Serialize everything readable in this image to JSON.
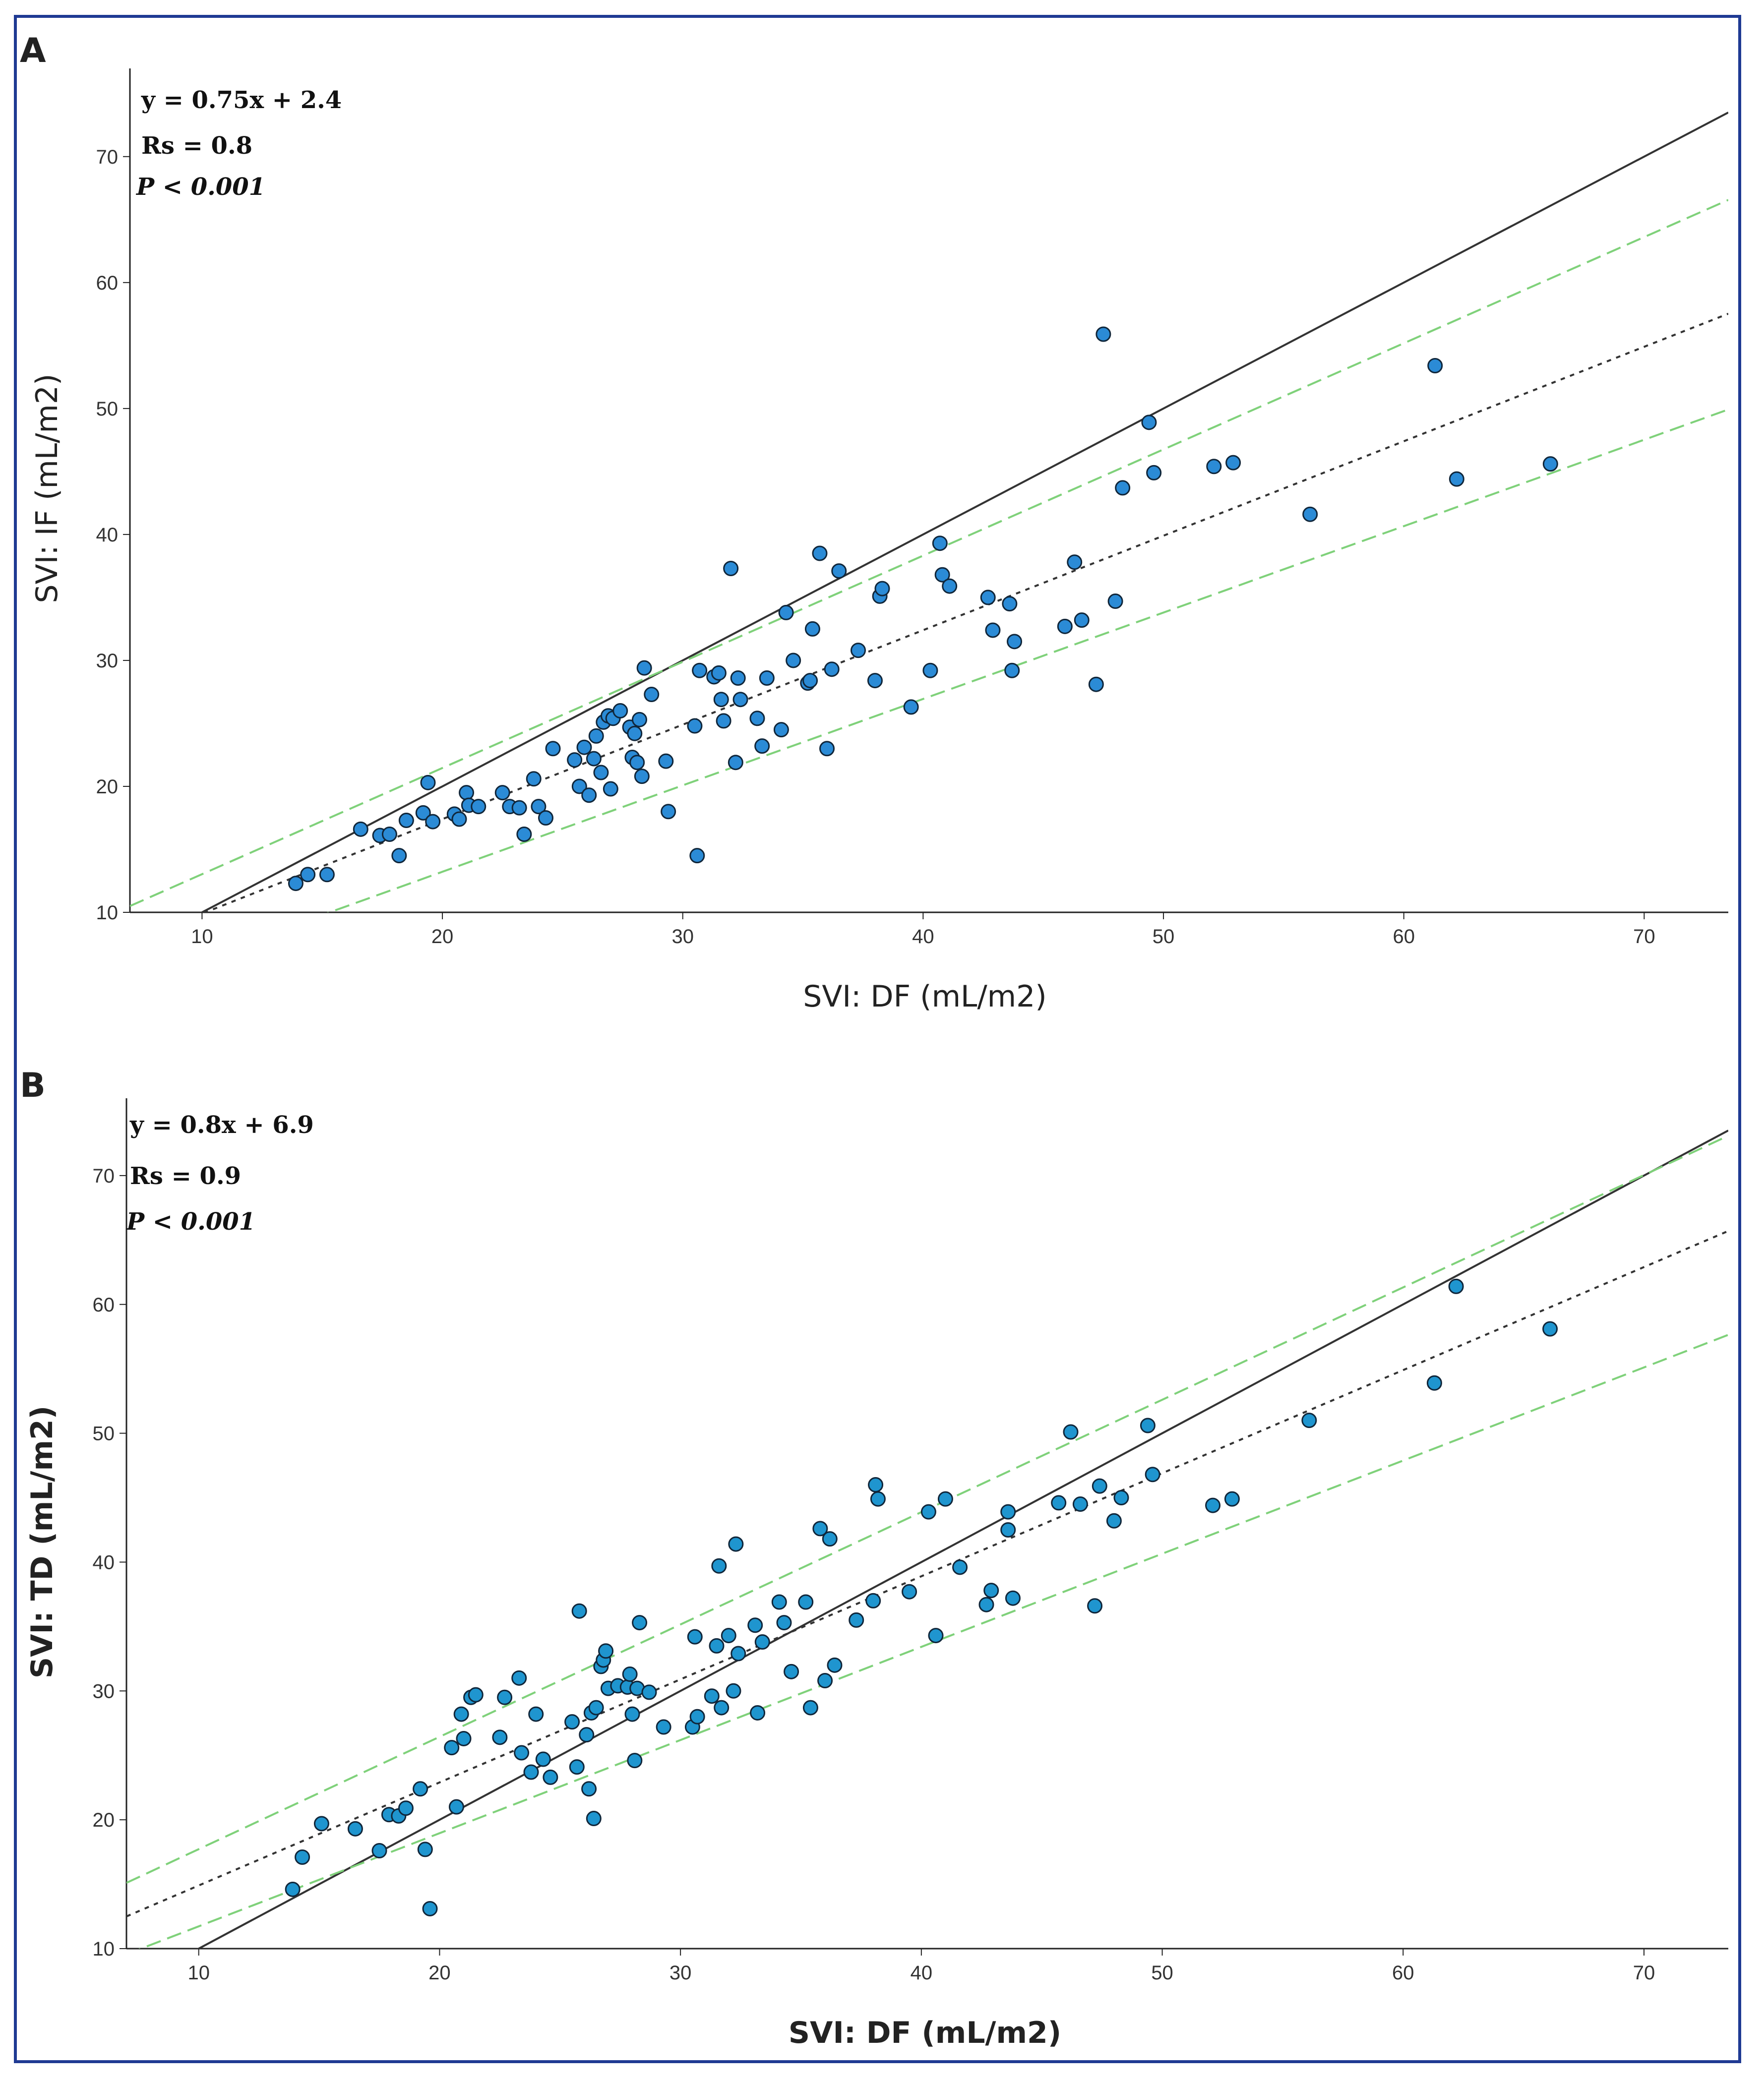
{
  "chart_data": [
    {
      "panel": "A",
      "type": "scatter",
      "xlabel": "SVI: DF (mL/m2)",
      "ylabel": "SVI: IF (mL/m2)",
      "xlim": [
        7,
        73.5
      ],
      "ylim": [
        10,
        77
      ],
      "xticks": [
        10,
        20,
        30,
        40,
        50,
        60,
        70
      ],
      "yticks": [
        10,
        20,
        30,
        40,
        50,
        60,
        70
      ],
      "annotations": [
        "y = 0.75x + 2.4",
        "Rs = 0.8",
        "P < 0.001"
      ],
      "lines": [
        {
          "name": "identity",
          "style": "solid",
          "color": "#333333",
          "slope": 1,
          "intercept": 0
        },
        {
          "name": "regression",
          "style": "dotted",
          "color": "#333333",
          "slope": 0.75,
          "intercept": 2.4
        },
        {
          "name": "upper-bound",
          "style": "dashed",
          "color": "#7fd17a",
          "slope": 0.843,
          "intercept": 4.6
        },
        {
          "name": "lower-bound",
          "style": "dashed",
          "color": "#7fd17a",
          "slope": 0.686,
          "intercept": -0.5
        }
      ],
      "point_color": "#2b8bd6",
      "points": [
        [
          13.9,
          12.3
        ],
        [
          14.4,
          13.0
        ],
        [
          15.2,
          13.0
        ],
        [
          16.6,
          16.6
        ],
        [
          17.4,
          16.1
        ],
        [
          17.8,
          16.2
        ],
        [
          18.2,
          14.5
        ],
        [
          18.5,
          17.3
        ],
        [
          19.2,
          17.9
        ],
        [
          19.4,
          20.3
        ],
        [
          19.6,
          17.2
        ],
        [
          20.5,
          17.8
        ],
        [
          20.7,
          17.4
        ],
        [
          21.0,
          19.5
        ],
        [
          21.1,
          18.5
        ],
        [
          21.5,
          18.4
        ],
        [
          22.5,
          19.5
        ],
        [
          22.8,
          18.4
        ],
        [
          23.2,
          18.3
        ],
        [
          23.4,
          16.2
        ],
        [
          23.8,
          20.6
        ],
        [
          24.0,
          18.4
        ],
        [
          24.3,
          17.5
        ],
        [
          24.6,
          23.0
        ],
        [
          25.5,
          22.1
        ],
        [
          25.7,
          20.0
        ],
        [
          25.9,
          23.1
        ],
        [
          26.1,
          19.3
        ],
        [
          26.3,
          22.2
        ],
        [
          26.4,
          24.0
        ],
        [
          26.6,
          21.1
        ],
        [
          26.7,
          25.1
        ],
        [
          26.9,
          25.6
        ],
        [
          27.0,
          19.8
        ],
        [
          27.1,
          25.4
        ],
        [
          27.4,
          26.0
        ],
        [
          27.8,
          24.7
        ],
        [
          27.9,
          22.3
        ],
        [
          28.0,
          24.2
        ],
        [
          28.1,
          21.9
        ],
        [
          28.2,
          25.3
        ],
        [
          28.3,
          20.8
        ],
        [
          28.4,
          29.4
        ],
        [
          28.7,
          27.3
        ],
        [
          29.3,
          22.0
        ],
        [
          29.4,
          18.0
        ],
        [
          30.5,
          24.8
        ],
        [
          30.6,
          14.5
        ],
        [
          30.7,
          29.2
        ],
        [
          31.3,
          28.7
        ],
        [
          31.5,
          29.0
        ],
        [
          31.6,
          26.9
        ],
        [
          31.7,
          25.2
        ],
        [
          32.0,
          37.3
        ],
        [
          32.2,
          21.9
        ],
        [
          32.3,
          28.6
        ],
        [
          32.4,
          26.9
        ],
        [
          33.1,
          25.4
        ],
        [
          33.3,
          23.2
        ],
        [
          33.5,
          28.6
        ],
        [
          34.1,
          24.5
        ],
        [
          34.3,
          33.8
        ],
        [
          34.6,
          30.0
        ],
        [
          35.2,
          28.2
        ],
        [
          35.3,
          28.4
        ],
        [
          35.4,
          32.5
        ],
        [
          35.7,
          38.5
        ],
        [
          36.0,
          23.0
        ],
        [
          36.2,
          29.3
        ],
        [
          36.5,
          37.1
        ],
        [
          37.3,
          30.8
        ],
        [
          38.0,
          28.4
        ],
        [
          38.2,
          35.1
        ],
        [
          38.3,
          35.7
        ],
        [
          39.5,
          26.3
        ],
        [
          40.3,
          29.2
        ],
        [
          40.7,
          39.3
        ],
        [
          40.8,
          36.8
        ],
        [
          41.1,
          35.9
        ],
        [
          42.7,
          35.0
        ],
        [
          42.9,
          32.4
        ],
        [
          43.6,
          34.5
        ],
        [
          43.7,
          29.2
        ],
        [
          43.8,
          31.5
        ],
        [
          45.9,
          32.7
        ],
        [
          46.3,
          37.8
        ],
        [
          46.6,
          33.2
        ],
        [
          47.2,
          28.1
        ],
        [
          47.5,
          55.9
        ],
        [
          48.0,
          34.7
        ],
        [
          48.3,
          43.7
        ],
        [
          49.4,
          48.9
        ],
        [
          49.6,
          44.9
        ],
        [
          52.1,
          45.4
        ],
        [
          52.9,
          45.7
        ],
        [
          56.1,
          41.6
        ],
        [
          61.3,
          53.4
        ],
        [
          62.2,
          44.4
        ],
        [
          66.1,
          45.6
        ]
      ]
    },
    {
      "panel": "B",
      "type": "scatter",
      "xlabel": "SVI: DF (mL/m2)",
      "ylabel": "SVI: TD (mL/m2)",
      "xlim": [
        7,
        73.5
      ],
      "ylim": [
        10,
        76
      ],
      "xticks": [
        10,
        20,
        30,
        40,
        50,
        60,
        70
      ],
      "yticks": [
        10,
        20,
        30,
        40,
        50,
        60,
        70
      ],
      "annotations": [
        "y = 0.8x + 6.9",
        "Rs = 0.9",
        "P < 0.001"
      ],
      "lines": [
        {
          "name": "identity",
          "style": "solid",
          "color": "#333333",
          "slope": 1,
          "intercept": 0
        },
        {
          "name": "regression",
          "style": "dotted",
          "color": "#333333",
          "slope": 0.8,
          "intercept": 6.9
        },
        {
          "name": "upper-bound",
          "style": "dashed",
          "color": "#7fd17a",
          "slope": 0.872,
          "intercept": 9.0
        },
        {
          "name": "lower-bound",
          "style": "dashed",
          "color": "#7fd17a",
          "slope": 0.723,
          "intercept": 4.5
        }
      ],
      "point_color": "#1f95cf",
      "points": [
        [
          13.9,
          14.6
        ],
        [
          14.3,
          17.1
        ],
        [
          15.1,
          19.7
        ],
        [
          16.5,
          19.3
        ],
        [
          17.5,
          17.6
        ],
        [
          17.9,
          20.4
        ],
        [
          18.3,
          20.3
        ],
        [
          18.6,
          20.9
        ],
        [
          19.2,
          22.4
        ],
        [
          19.4,
          17.7
        ],
        [
          19.6,
          13.1
        ],
        [
          20.5,
          25.6
        ],
        [
          20.7,
          21.0
        ],
        [
          20.9,
          28.2
        ],
        [
          21.0,
          26.3
        ],
        [
          21.3,
          29.5
        ],
        [
          21.5,
          29.7
        ],
        [
          22.5,
          26.4
        ],
        [
          22.7,
          29.5
        ],
        [
          23.3,
          31.0
        ],
        [
          23.4,
          25.2
        ],
        [
          23.8,
          23.7
        ],
        [
          24.0,
          28.2
        ],
        [
          24.3,
          24.7
        ],
        [
          24.6,
          23.3
        ],
        [
          25.5,
          27.6
        ],
        [
          25.7,
          24.1
        ],
        [
          25.8,
          36.2
        ],
        [
          26.1,
          26.6
        ],
        [
          26.2,
          22.4
        ],
        [
          26.3,
          28.3
        ],
        [
          26.4,
          20.1
        ],
        [
          26.5,
          28.7
        ],
        [
          26.7,
          31.9
        ],
        [
          26.8,
          32.4
        ],
        [
          26.9,
          33.1
        ],
        [
          27.0,
          30.2
        ],
        [
          27.4,
          30.4
        ],
        [
          27.8,
          30.3
        ],
        [
          27.9,
          31.3
        ],
        [
          28.0,
          28.2
        ],
        [
          28.1,
          24.6
        ],
        [
          28.2,
          30.2
        ],
        [
          28.3,
          35.3
        ],
        [
          28.7,
          29.9
        ],
        [
          29.3,
          27.2
        ],
        [
          30.5,
          27.2
        ],
        [
          30.6,
          34.2
        ],
        [
          30.7,
          28.0
        ],
        [
          31.3,
          29.6
        ],
        [
          31.5,
          33.5
        ],
        [
          31.6,
          39.7
        ],
        [
          31.7,
          28.7
        ],
        [
          32.0,
          34.3
        ],
        [
          32.2,
          30.0
        ],
        [
          32.3,
          41.4
        ],
        [
          32.4,
          32.9
        ],
        [
          33.1,
          35.1
        ],
        [
          33.2,
          28.3
        ],
        [
          33.4,
          33.8
        ],
        [
          34.1,
          36.9
        ],
        [
          34.3,
          35.3
        ],
        [
          34.6,
          31.5
        ],
        [
          35.2,
          36.9
        ],
        [
          35.4,
          28.7
        ],
        [
          35.8,
          42.6
        ],
        [
          36.0,
          30.8
        ],
        [
          36.2,
          41.8
        ],
        [
          36.4,
          32.0
        ],
        [
          37.3,
          35.5
        ],
        [
          38.0,
          37.0
        ],
        [
          38.1,
          46.0
        ],
        [
          38.2,
          44.9
        ],
        [
          39.5,
          37.7
        ],
        [
          40.3,
          43.9
        ],
        [
          40.6,
          34.3
        ],
        [
          41.0,
          44.9
        ],
        [
          41.6,
          39.6
        ],
        [
          42.7,
          36.7
        ],
        [
          42.9,
          37.8
        ],
        [
          43.6,
          42.5
        ],
        [
          43.6,
          43.9
        ],
        [
          43.8,
          37.2
        ],
        [
          45.7,
          44.6
        ],
        [
          46.2,
          50.1
        ],
        [
          46.6,
          44.5
        ],
        [
          47.2,
          36.6
        ],
        [
          47.4,
          45.9
        ],
        [
          48.0,
          43.2
        ],
        [
          48.3,
          45.0
        ],
        [
          49.4,
          50.6
        ],
        [
          49.6,
          46.8
        ],
        [
          52.1,
          44.4
        ],
        [
          52.9,
          44.9
        ],
        [
          56.1,
          51.0
        ],
        [
          61.3,
          53.9
        ],
        [
          62.2,
          61.4
        ],
        [
          66.1,
          58.1
        ]
      ]
    }
  ]
}
